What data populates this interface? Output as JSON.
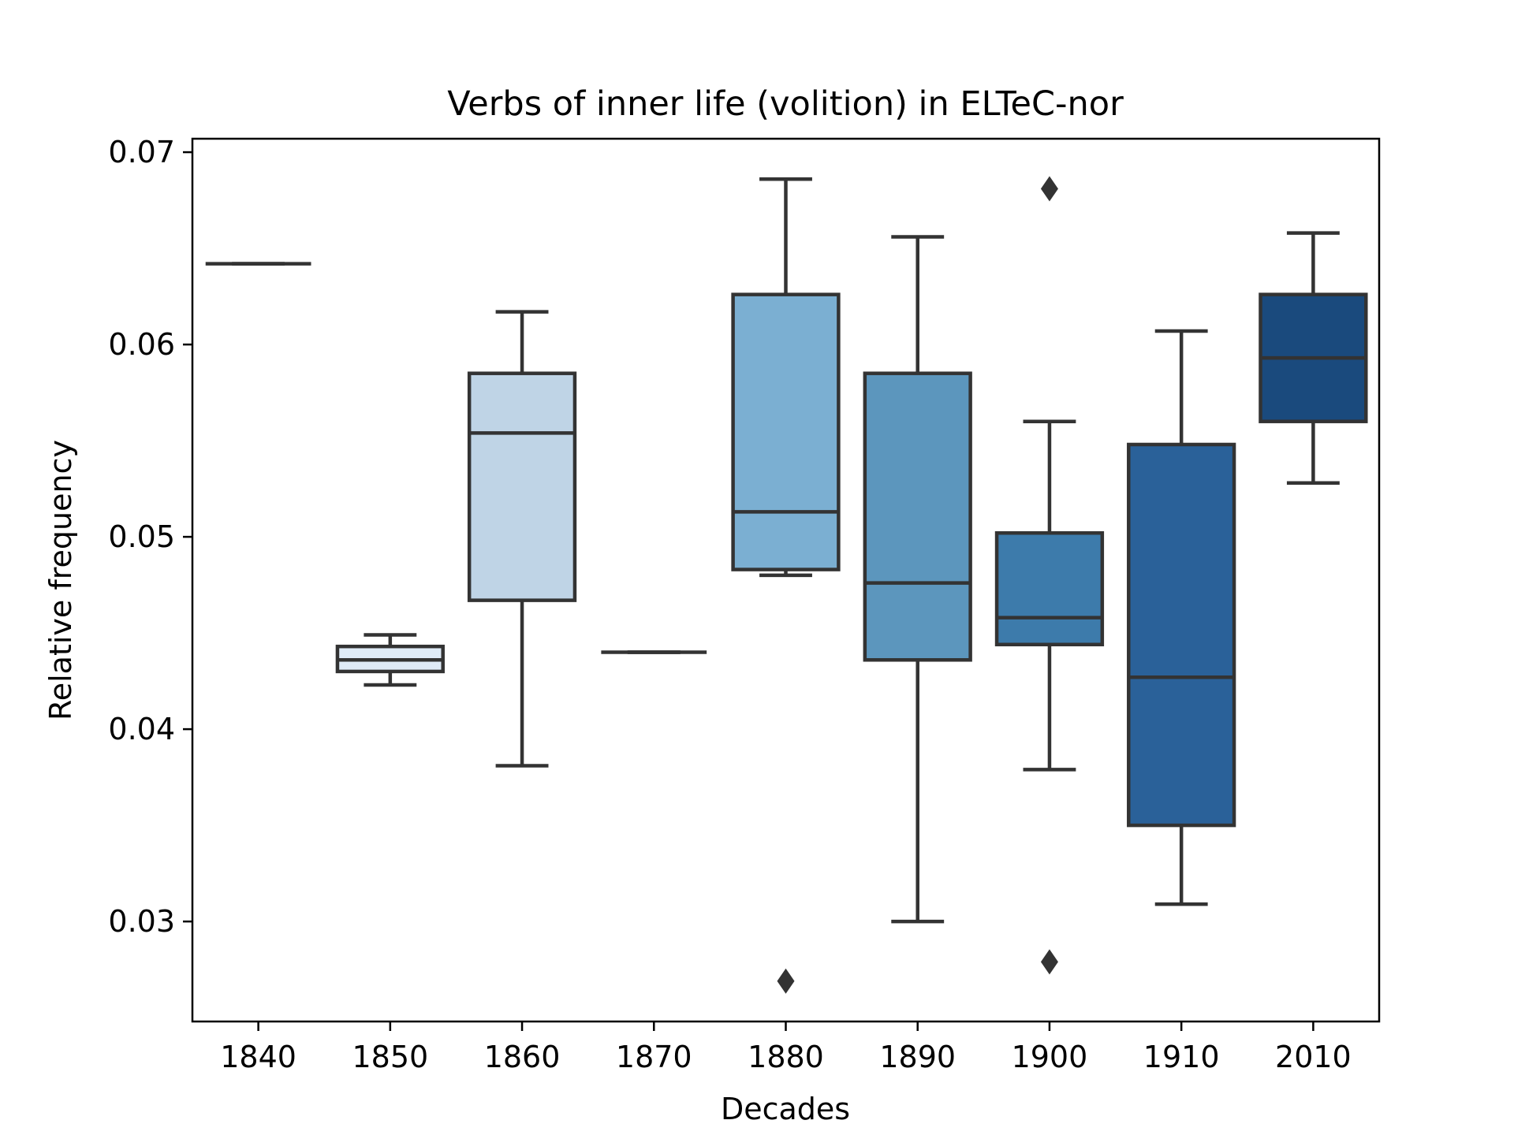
{
  "chart_data": {
    "type": "box",
    "title": "Verbs of inner life (volition) in ELTeC-nor",
    "xlabel": "Decades",
    "ylabel": "Relative frequency",
    "ylim": [
      0.0248,
      0.0707
    ],
    "yticks": [
      "0.03",
      "0.04",
      "0.05",
      "0.06",
      "0.07"
    ],
    "categories": [
      "1840",
      "1850",
      "1860",
      "1870",
      "1880",
      "1890",
      "1900",
      "1910",
      "2010"
    ],
    "boxes": [
      {
        "category": "1840",
        "whisker_low": 0.0642,
        "q1": 0.0642,
        "median": 0.0642,
        "q3": 0.0642,
        "whisker_high": 0.0642,
        "outliers": [],
        "color": "#f7fbff"
      },
      {
        "category": "1850",
        "whisker_low": 0.0423,
        "q1": 0.043,
        "median": 0.0436,
        "q3": 0.0443,
        "whisker_high": 0.0449,
        "outliers": [],
        "color": "#dfebf7"
      },
      {
        "category": "1860",
        "whisker_low": 0.0381,
        "q1": 0.0467,
        "median": 0.0554,
        "q3": 0.0585,
        "whisker_high": 0.0617,
        "outliers": [],
        "color": "#bfd4e6"
      },
      {
        "category": "1870",
        "whisker_low": 0.044,
        "q1": 0.044,
        "median": 0.044,
        "q3": 0.044,
        "whisker_high": 0.044,
        "outliers": [],
        "color": "#a3c5e0"
      },
      {
        "category": "1880",
        "whisker_low": 0.048,
        "q1": 0.0483,
        "median": 0.0513,
        "q3": 0.0626,
        "whisker_high": 0.0686,
        "outliers": [
          0.0269
        ],
        "color": "#7bafd2"
      },
      {
        "category": "1890",
        "whisker_low": 0.03,
        "q1": 0.0436,
        "median": 0.0476,
        "q3": 0.0585,
        "whisker_high": 0.0656,
        "outliers": [],
        "color": "#5c96bd"
      },
      {
        "category": "1900",
        "whisker_low": 0.0379,
        "q1": 0.0444,
        "median": 0.0458,
        "q3": 0.0502,
        "whisker_high": 0.056,
        "outliers": [
          0.0681,
          0.0279
        ],
        "color": "#3d7bab"
      },
      {
        "category": "1910",
        "whisker_low": 0.0309,
        "q1": 0.035,
        "median": 0.0427,
        "q3": 0.0548,
        "whisker_high": 0.0607,
        "outliers": [],
        "color": "#2a6199"
      },
      {
        "category": "2010",
        "whisker_low": 0.0528,
        "q1": 0.056,
        "median": 0.0593,
        "q3": 0.0626,
        "whisker_high": 0.0658,
        "outliers": [],
        "color": "#1a4a7d"
      }
    ],
    "grid": false,
    "legend": "none"
  }
}
